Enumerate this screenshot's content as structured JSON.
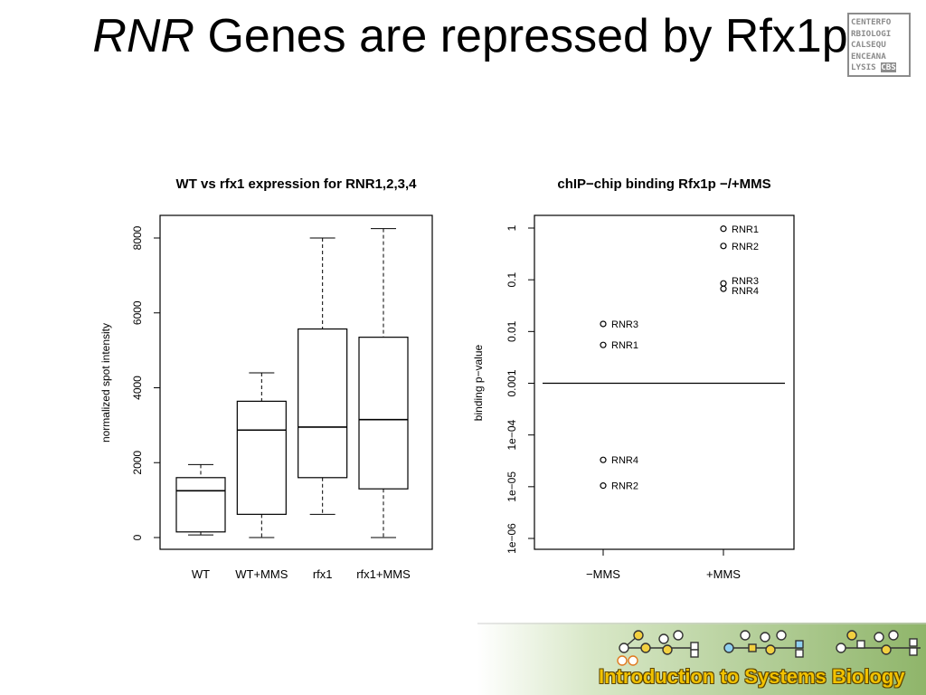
{
  "slide": {
    "title_italic": "RNR",
    "title_rest": " Genes are repressed by Rfx1p",
    "logo_lines": [
      "CENTERFO",
      "RBIOLOGI",
      "CALSEQU",
      "ENCEANA"
    ],
    "logo_last_prefix": "LYSIS ",
    "logo_last_badge": "CBS",
    "banner_text": "Introduction to Systems Biology"
  },
  "chart_data": [
    {
      "type": "boxplot",
      "title": "WT vs rfx1 expression for RNR1,2,3,4",
      "xlabel": "",
      "ylabel": "normalized spot intensity",
      "ylim": [
        0,
        8300
      ],
      "yticks": [
        0,
        2000,
        4000,
        6000,
        8000
      ],
      "categories": [
        "WT",
        "WT+MMS",
        "rfx1",
        "rfx1+MMS"
      ],
      "boxes": [
        {
          "category": "WT",
          "whisker_low": 70,
          "q1": 150,
          "median": 1250,
          "q3": 1600,
          "whisker_high": 1950
        },
        {
          "category": "WT+MMS",
          "whisker_low": 0,
          "q1": 620,
          "median": 2870,
          "q3": 3640,
          "whisker_high": 4400
        },
        {
          "category": "rfx1",
          "whisker_low": 620,
          "q1": 1600,
          "median": 2950,
          "q3": 5570,
          "whisker_high": 8000
        },
        {
          "category": "rfx1+MMS",
          "whisker_low": 0,
          "q1": 1300,
          "median": 3150,
          "q3": 5350,
          "whisker_high": 8250
        }
      ],
      "grid": false
    },
    {
      "type": "scatter",
      "title": "chIP−chip binding Rfx1p −/+MMS",
      "xlabel": "",
      "ylabel": "binding p−value",
      "yscale": "log",
      "ylim": [
        1e-06,
        1.6
      ],
      "yticks": [
        1,
        0.1,
        0.01,
        0.001,
        0.0001,
        1e-05,
        1e-06
      ],
      "ytick_labels": [
        "1",
        "0.1",
        "0.01",
        "0.001",
        "1e−04",
        "1e−05",
        "1e−06"
      ],
      "categories": [
        "−MMS",
        "+MMS"
      ],
      "reference_line": 0.001,
      "points": [
        {
          "x": "−MMS",
          "y": 0.014,
          "label": "RNR3"
        },
        {
          "x": "−MMS",
          "y": 0.0055,
          "label": "RNR1"
        },
        {
          "x": "−MMS",
          "y": 3.3e-05,
          "label": "RNR4"
        },
        {
          "x": "−MMS",
          "y": 1.05e-05,
          "label": "RNR2"
        },
        {
          "x": "+MMS",
          "y": 0.97,
          "label": "RNR1"
        },
        {
          "x": "+MMS",
          "y": 0.45,
          "label": "RNR2"
        },
        {
          "x": "+MMS",
          "y": 0.085,
          "label": "RNR3"
        },
        {
          "x": "+MMS",
          "y": 0.067,
          "label": "RNR4"
        }
      ],
      "grid": false
    }
  ]
}
